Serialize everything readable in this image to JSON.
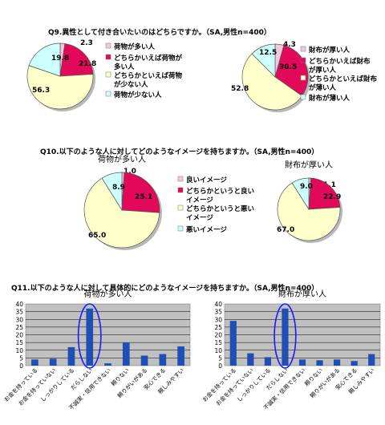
{
  "colors": {
    "pink": "#e2085a",
    "light_pink": "#f2c8e0",
    "cream": "#ffffcc",
    "light_cyan": "#ccffff",
    "bar_blue": "#1f4fb5",
    "plot_bg": "#c0c0c0",
    "ellipse": "#1a1aff"
  },
  "questions": {
    "q9": "Q9.異性として付き合いたいのはどちらですか。（SA,男性n=400）",
    "q10": "Q10.以下のような人に対してどのようなイメージを持ちますか。（SA,男性n=400）",
    "q11": "Q11.以下のような人に対して具体的にどのようなイメージを持ちますか。（SA,男性n=400）"
  },
  "chart_data": [
    {
      "id": "q9_left",
      "type": "pie",
      "title": "",
      "slices": [
        {
          "label": "荷物が多い人",
          "value": 2.3,
          "color": "light_pink"
        },
        {
          "label": "どちらかいえば荷物が多い人",
          "value": 21.8,
          "color": "pink"
        },
        {
          "label": "どちらかといえば荷物が少ない人",
          "value": 56.3,
          "color": "cream"
        },
        {
          "label": "荷物が少ない人",
          "value": 19.8,
          "color": "light_cyan"
        }
      ],
      "legend_lines": [
        [
          "荷物が多い人"
        ],
        [
          "どちらかいえば荷物が",
          "多い人"
        ],
        [
          "どちらかといえば荷物",
          "が少ない人"
        ],
        [
          "荷物が少ない人"
        ]
      ]
    },
    {
      "id": "q9_right",
      "type": "pie",
      "title": "",
      "slices": [
        {
          "label": "財布が厚い人",
          "value": 4.3,
          "color": "light_pink"
        },
        {
          "label": "どちらかいえば財布が厚い人",
          "value": 30.5,
          "color": "pink"
        },
        {
          "label": "どちらかといえば財布が薄い人",
          "value": 52.8,
          "color": "cream"
        },
        {
          "label": "財布が薄い人",
          "value": 12.5,
          "color": "light_cyan"
        }
      ],
      "legend_lines": [
        [
          "財布が厚い人"
        ],
        [
          "どちらかいえば財布",
          "が厚い人"
        ],
        [
          "どちらかといえば財布",
          "が薄い人"
        ],
        [
          "財布が薄い人"
        ]
      ]
    },
    {
      "id": "q10_left",
      "type": "pie",
      "title": "荷物が多い人",
      "slices": [
        {
          "label": "良いイメージ",
          "value": 1.0,
          "color": "light_pink"
        },
        {
          "label": "どちらかというと良いイメージ",
          "value": 25.1,
          "color": "pink"
        },
        {
          "label": "どちらかというと悪いイメージ",
          "value": 65.0,
          "color": "cream"
        },
        {
          "label": "悪いイメージ",
          "value": 8.9,
          "color": "light_cyan"
        }
      ],
      "legend_lines": [
        [
          "良いイメージ"
        ],
        [
          "どちらかというと良い",
          "イメージ"
        ],
        [
          "どちらかというと悪い",
          "イメージ"
        ],
        [
          "悪いイメージ"
        ]
      ]
    },
    {
      "id": "q10_right",
      "type": "pie",
      "title": "財布が厚い人",
      "slices": [
        {
          "label": "良いイメージ",
          "value": 1.1,
          "color": "light_pink"
        },
        {
          "label": "どちらかというと良いイメージ",
          "value": 22.9,
          "color": "pink"
        },
        {
          "label": "どちらかというと悪いイメージ",
          "value": 67.0,
          "color": "cream"
        },
        {
          "label": "悪いイメージ",
          "value": 9.0,
          "color": "light_cyan"
        }
      ]
    },
    {
      "id": "q11_left",
      "type": "bar",
      "title": "荷物が多い人",
      "categories": [
        "お金を持っている",
        "お金を持っていない",
        "しっかりしている",
        "だらしない",
        "不誠実・信用できない",
        "頼りない",
        "頼りがいがある",
        "安心できる",
        "親しみやすい"
      ],
      "values": [
        4,
        4.5,
        12,
        37,
        1.5,
        15,
        6.5,
        7.5,
        12.5
      ],
      "ylim": [
        0,
        40
      ],
      "yticks": [
        0,
        5,
        10,
        15,
        20,
        25,
        30,
        35,
        40
      ],
      "highlight": "だらしない"
    },
    {
      "id": "q11_right",
      "type": "bar",
      "title": "財布が厚い人",
      "categories": [
        "お金を持っている",
        "お金を持っていない",
        "しっかりしている",
        "だらしない",
        "不誠実・信用できない",
        "頼りない",
        "頼りがいがある",
        "安心できる",
        "親しみやすい"
      ],
      "values": [
        29,
        8,
        5.5,
        37,
        4,
        3.5,
        4,
        3,
        7.5
      ],
      "ylim": [
        0,
        40
      ],
      "yticks": [
        0,
        5,
        10,
        15,
        20,
        25,
        30,
        35,
        40
      ],
      "highlight": "だらしない"
    }
  ]
}
